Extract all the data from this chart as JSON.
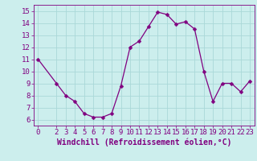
{
  "x": [
    0,
    2,
    3,
    4,
    5,
    6,
    7,
    8,
    9,
    10,
    11,
    12,
    13,
    14,
    15,
    16,
    17,
    18,
    19,
    20,
    21,
    22,
    23
  ],
  "y": [
    11.0,
    9.0,
    8.0,
    7.5,
    6.5,
    6.2,
    6.2,
    6.5,
    8.8,
    12.0,
    12.5,
    13.7,
    14.9,
    14.7,
    13.9,
    14.1,
    13.5,
    10.0,
    7.5,
    9.0,
    9.0,
    8.3,
    9.2
  ],
  "line_color": "#800080",
  "marker": "D",
  "marker_size": 2.5,
  "bg_color": "#cceeed",
  "grid_color": "#aad8d8",
  "xlabel": "Windchill (Refroidissement éolien,°C)",
  "xlabel_color": "#800080",
  "xlabel_fontsize": 7,
  "tick_color": "#800080",
  "tick_fontsize": 6.5,
  "ylim": [
    5.5,
    15.5
  ],
  "xlim": [
    -0.5,
    23.5
  ],
  "yticks": [
    6,
    7,
    8,
    9,
    10,
    11,
    12,
    13,
    14,
    15
  ],
  "xticks": [
    0,
    2,
    3,
    4,
    5,
    6,
    7,
    8,
    9,
    10,
    11,
    12,
    13,
    14,
    15,
    16,
    17,
    18,
    19,
    20,
    21,
    22,
    23
  ]
}
